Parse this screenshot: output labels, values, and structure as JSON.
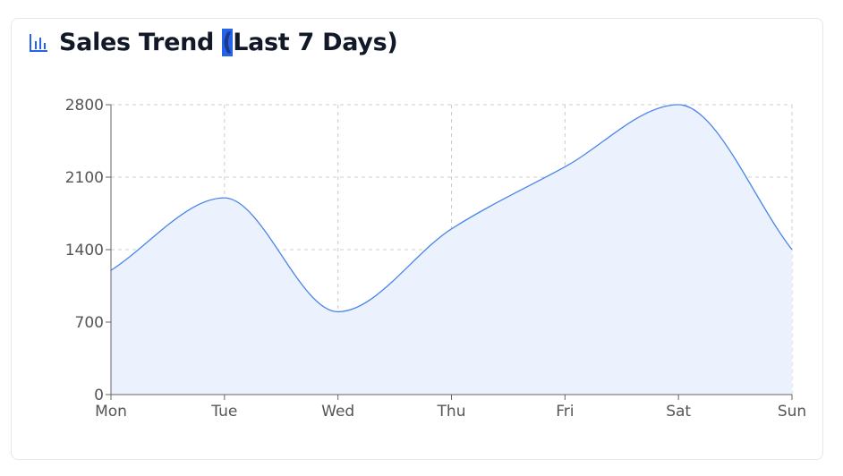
{
  "header": {
    "title_before": "Sales Trend ",
    "title_highlight": "(",
    "title_after": "Last 7 Days)",
    "icon": "bar-chart-icon",
    "accent_color": "#2563eb"
  },
  "chart_data": {
    "type": "area",
    "title": "Sales Trend (Last 7 Days)",
    "categories": [
      "Mon",
      "Tue",
      "Wed",
      "Thu",
      "Fri",
      "Sat",
      "Sun"
    ],
    "values": [
      1200,
      1900,
      800,
      1600,
      2200,
      2800,
      1400
    ],
    "ylim": [
      0,
      2800
    ],
    "yticks": [
      0,
      700,
      1400,
      2100,
      2800
    ],
    "grid": true,
    "line_color": "#4a86e8",
    "fill_color": "#ebf1fd",
    "xlabel": "",
    "ylabel": ""
  }
}
